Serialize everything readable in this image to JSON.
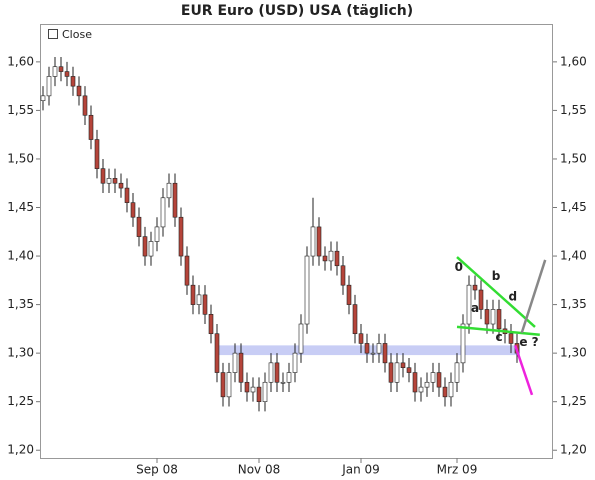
{
  "chart_data": {
    "type": "candlestick",
    "title": "EUR Euro (USD) USA (täglich)",
    "legend": "Close",
    "categories": [
      null,
      null,
      null,
      null,
      null,
      null,
      null,
      null,
      null,
      null,
      null,
      null,
      null,
      null,
      null,
      null,
      null,
      null,
      null,
      "Sep 08",
      null,
      null,
      null,
      null,
      null,
      null,
      null,
      null,
      null,
      null,
      null,
      null,
      null,
      null,
      null,
      null,
      "Nov 08",
      null,
      null,
      null,
      null,
      null,
      null,
      null,
      null,
      null,
      null,
      null,
      null,
      null,
      null,
      null,
      null,
      "Jan 09",
      null,
      null,
      null,
      null,
      null,
      null,
      null,
      null,
      null,
      null,
      null,
      null,
      null,
      null,
      null,
      "Mrz 09",
      null,
      null,
      null,
      null,
      null,
      null,
      null,
      null,
      null,
      null
    ],
    "open": [
      1.56,
      1.565,
      1.585,
      1.595,
      1.59,
      1.585,
      1.575,
      1.565,
      1.545,
      1.52,
      1.49,
      1.475,
      1.48,
      1.475,
      1.47,
      1.455,
      1.44,
      1.42,
      1.4,
      1.415,
      1.43,
      1.46,
      1.475,
      1.44,
      1.4,
      1.37,
      1.35,
      1.36,
      1.34,
      1.32,
      1.28,
      1.255,
      1.28,
      1.3,
      1.27,
      1.26,
      1.265,
      1.25,
      1.27,
      1.29,
      1.27,
      1.27,
      1.28,
      1.3,
      1.33,
      1.4,
      1.43,
      1.4,
      1.395,
      1.405,
      1.39,
      1.37,
      1.35,
      1.32,
      1.31,
      1.3,
      1.3,
      1.31,
      1.29,
      1.27,
      1.29,
      1.285,
      1.28,
      1.26,
      1.265,
      1.27,
      1.28,
      1.265,
      1.255,
      1.27,
      1.29,
      1.33,
      1.37,
      1.365,
      1.345,
      1.33,
      1.345,
      1.325,
      1.32,
      1.31
    ],
    "high": [
      1.575,
      1.595,
      1.605,
      1.605,
      1.6,
      1.595,
      1.585,
      1.575,
      1.555,
      1.53,
      1.5,
      1.49,
      1.49,
      1.485,
      1.48,
      1.465,
      1.45,
      1.43,
      1.425,
      1.44,
      1.47,
      1.485,
      1.485,
      1.45,
      1.41,
      1.38,
      1.37,
      1.37,
      1.35,
      1.33,
      1.29,
      1.29,
      1.31,
      1.31,
      1.28,
      1.275,
      1.275,
      1.28,
      1.3,
      1.3,
      1.28,
      1.29,
      1.31,
      1.34,
      1.41,
      1.46,
      1.44,
      1.41,
      1.415,
      1.415,
      1.4,
      1.38,
      1.36,
      1.33,
      1.32,
      1.31,
      1.32,
      1.32,
      1.3,
      1.3,
      1.3,
      1.295,
      1.29,
      1.275,
      1.28,
      1.29,
      1.29,
      1.275,
      1.28,
      1.3,
      1.34,
      1.38,
      1.38,
      1.375,
      1.355,
      1.355,
      1.355,
      1.335,
      1.33,
      1.32
    ],
    "low": [
      1.55,
      1.555,
      1.575,
      1.58,
      1.575,
      1.565,
      1.555,
      1.535,
      1.51,
      1.48,
      1.465,
      1.465,
      1.465,
      1.46,
      1.445,
      1.43,
      1.41,
      1.39,
      1.39,
      1.405,
      1.42,
      1.45,
      1.43,
      1.39,
      1.36,
      1.34,
      1.34,
      1.33,
      1.31,
      1.27,
      1.245,
      1.245,
      1.27,
      1.26,
      1.25,
      1.25,
      1.24,
      1.24,
      1.26,
      1.26,
      1.26,
      1.26,
      1.27,
      1.29,
      1.32,
      1.39,
      1.39,
      1.385,
      1.385,
      1.38,
      1.36,
      1.34,
      1.31,
      1.3,
      1.29,
      1.29,
      1.29,
      1.28,
      1.26,
      1.26,
      1.275,
      1.27,
      1.25,
      1.25,
      1.255,
      1.26,
      1.255,
      1.245,
      1.245,
      1.26,
      1.28,
      1.32,
      1.355,
      1.335,
      1.32,
      1.32,
      1.315,
      1.31,
      1.3,
      1.29
    ],
    "close": [
      1.565,
      1.585,
      1.595,
      1.59,
      1.585,
      1.575,
      1.565,
      1.545,
      1.52,
      1.49,
      1.475,
      1.48,
      1.475,
      1.47,
      1.455,
      1.44,
      1.42,
      1.4,
      1.415,
      1.43,
      1.46,
      1.475,
      1.44,
      1.4,
      1.37,
      1.35,
      1.36,
      1.34,
      1.32,
      1.28,
      1.255,
      1.28,
      1.3,
      1.27,
      1.26,
      1.265,
      1.25,
      1.27,
      1.29,
      1.27,
      1.27,
      1.28,
      1.3,
      1.33,
      1.4,
      1.43,
      1.4,
      1.395,
      1.405,
      1.39,
      1.37,
      1.35,
      1.32,
      1.31,
      1.3,
      1.3,
      1.31,
      1.29,
      1.27,
      1.29,
      1.285,
      1.28,
      1.26,
      1.265,
      1.27,
      1.28,
      1.265,
      1.255,
      1.27,
      1.29,
      1.33,
      1.37,
      1.365,
      1.345,
      1.33,
      1.345,
      1.325,
      1.32,
      1.31,
      1.3
    ],
    "colors": {
      "up": "#ffffff",
      "down": "#b5443a",
      "wick": "#222222"
    },
    "band": {
      "from": 1.298,
      "to": 1.308,
      "color": "#c8cdf5"
    },
    "lines": [
      {
        "color": "#33dd33",
        "x": [
          69,
          82
        ],
        "y": [
          1.399,
          1.327
        ]
      },
      {
        "color": "#33dd33",
        "x": [
          69,
          82.8
        ],
        "y": [
          1.327,
          1.319
        ]
      },
      {
        "color": "#888888",
        "x": [
          79.8,
          83.7
        ],
        "y": [
          1.321,
          1.396
        ]
      },
      {
        "color": "#ee22dd",
        "x": [
          78.7,
          81.5
        ],
        "y": [
          1.308,
          1.257
        ]
      }
    ],
    "annotations": [
      {
        "text": "0",
        "color": "#ee22dd",
        "x": 69.3,
        "y": 1.388
      },
      {
        "text": "a",
        "color": "#1a7a1a",
        "x": 72,
        "y": 1.346
      },
      {
        "text": "b",
        "color": "#1a1acc",
        "x": 75.5,
        "y": 1.379
      },
      {
        "text": "c",
        "color": "#1a1acc",
        "x": 76,
        "y": 1.316
      },
      {
        "text": "d",
        "color": "#1a1acc",
        "x": 78.3,
        "y": 1.358
      },
      {
        "text": "e ?",
        "color": "#1a1acc",
        "x": 81,
        "y": 1.311
      }
    ],
    "ylim": [
      1.192,
      1.639
    ],
    "yticks": [
      {
        "value": 1.2,
        "label": "1,20"
      },
      {
        "value": 1.25,
        "label": "1,25"
      },
      {
        "value": 1.3,
        "label": "1,30"
      },
      {
        "value": 1.35,
        "label": "1,35"
      },
      {
        "value": 1.4,
        "label": "1,40"
      },
      {
        "value": 1.45,
        "label": "1,45"
      },
      {
        "value": 1.5,
        "label": "1,50"
      },
      {
        "value": 1.55,
        "label": "1,55"
      },
      {
        "value": 1.6,
        "label": "1,60"
      }
    ]
  }
}
